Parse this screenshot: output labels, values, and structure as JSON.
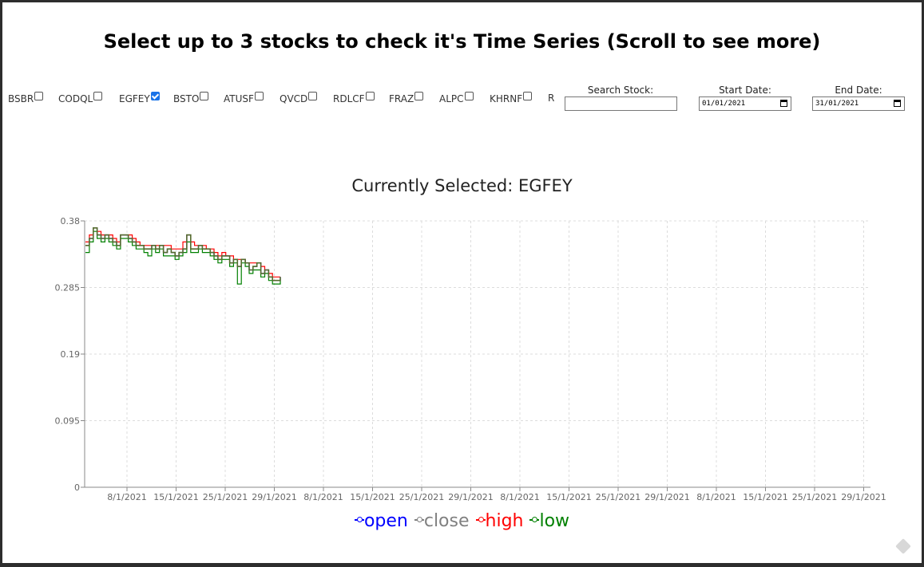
{
  "page": {
    "title": "Select up to 3 stocks to check it's Time Series (Scroll to see more)"
  },
  "stocks": [
    {
      "symbol": "BSBR",
      "checked": false
    },
    {
      "symbol": "CODQL",
      "checked": false
    },
    {
      "symbol": "EGFEY",
      "checked": true
    },
    {
      "symbol": "BSTO",
      "checked": false
    },
    {
      "symbol": "ATUSF",
      "checked": false
    },
    {
      "symbol": "QVCD",
      "checked": false
    },
    {
      "symbol": "RDLCF",
      "checked": false
    },
    {
      "symbol": "FRAZ",
      "checked": false
    },
    {
      "symbol": "ALPC",
      "checked": false
    },
    {
      "symbol": "KHRNF",
      "checked": false
    },
    {
      "symbol": "R",
      "checked": false
    }
  ],
  "controls": {
    "search_label": "Search Stock:",
    "search_value": "",
    "start_label": "Start Date:",
    "start_value": "01/01/2021",
    "end_label": "End Date:",
    "end_value": "31/01/2021"
  },
  "chart_data": {
    "type": "line",
    "title": "Currently Selected: EGFEY",
    "ylim": [
      0,
      0.38
    ],
    "y_ticks": [
      "0",
      "0.095",
      "0.19",
      "0.285",
      "0.38"
    ],
    "x_ticks": [
      "8/1/2021",
      "15/1/2021",
      "25/1/2021",
      "29/1/2021",
      "8/1/2021",
      "15/1/2021",
      "25/1/2021",
      "29/1/2021",
      "8/1/2021",
      "15/1/2021",
      "25/1/2021",
      "29/1/2021",
      "8/1/2021",
      "15/1/2021",
      "25/1/2021",
      "29/1/2021",
      "8/1/2021",
      "15/1/2021",
      "25/1/2021",
      "29/1/2021",
      "29/1/2021"
    ],
    "grid": true,
    "legend_position": "bottom",
    "series": [
      {
        "name": "open",
        "color": "#0000ff",
        "values": [
          0.345,
          0.355,
          0.37,
          0.36,
          0.355,
          0.36,
          0.355,
          0.35,
          0.345,
          0.36,
          0.36,
          0.355,
          0.35,
          0.345,
          0.345,
          0.34,
          0.34,
          0.345,
          0.34,
          0.345,
          0.335,
          0.34,
          0.335,
          0.33,
          0.335,
          0.34,
          0.36,
          0.34,
          0.34,
          0.345,
          0.34,
          0.34,
          0.335,
          0.33,
          0.325,
          0.33,
          0.33,
          0.32,
          0.325,
          0.315,
          0.325,
          0.32,
          0.31,
          0.315,
          0.32,
          0.305,
          0.31,
          0.3,
          0.295,
          0.295,
          0.3
        ]
      },
      {
        "name": "close",
        "color": "#808080",
        "values": [
          0.345,
          0.355,
          0.37,
          0.36,
          0.355,
          0.36,
          0.355,
          0.35,
          0.345,
          0.36,
          0.36,
          0.355,
          0.35,
          0.345,
          0.345,
          0.34,
          0.34,
          0.345,
          0.34,
          0.345,
          0.335,
          0.34,
          0.335,
          0.33,
          0.335,
          0.34,
          0.36,
          0.34,
          0.34,
          0.345,
          0.34,
          0.34,
          0.335,
          0.33,
          0.325,
          0.33,
          0.33,
          0.32,
          0.325,
          0.315,
          0.325,
          0.32,
          0.31,
          0.315,
          0.32,
          0.305,
          0.31,
          0.3,
          0.295,
          0.295,
          0.3
        ]
      },
      {
        "name": "high",
        "color": "#ff0000",
        "values": [
          0.35,
          0.36,
          0.37,
          0.365,
          0.36,
          0.36,
          0.36,
          0.355,
          0.35,
          0.36,
          0.36,
          0.36,
          0.355,
          0.35,
          0.345,
          0.345,
          0.345,
          0.345,
          0.345,
          0.345,
          0.345,
          0.345,
          0.34,
          0.34,
          0.34,
          0.35,
          0.36,
          0.35,
          0.345,
          0.345,
          0.345,
          0.34,
          0.34,
          0.335,
          0.33,
          0.335,
          0.33,
          0.33,
          0.325,
          0.325,
          0.325,
          0.32,
          0.32,
          0.32,
          0.32,
          0.315,
          0.31,
          0.305,
          0.3,
          0.3,
          0.3
        ]
      },
      {
        "name": "low",
        "color": "#008000",
        "values": [
          0.335,
          0.35,
          0.365,
          0.355,
          0.35,
          0.355,
          0.35,
          0.345,
          0.34,
          0.355,
          0.355,
          0.35,
          0.345,
          0.34,
          0.34,
          0.335,
          0.33,
          0.34,
          0.335,
          0.34,
          0.33,
          0.33,
          0.33,
          0.325,
          0.33,
          0.335,
          0.35,
          0.335,
          0.335,
          0.34,
          0.335,
          0.335,
          0.33,
          0.325,
          0.32,
          0.325,
          0.325,
          0.315,
          0.32,
          0.29,
          0.32,
          0.315,
          0.305,
          0.31,
          0.31,
          0.3,
          0.305,
          0.295,
          0.29,
          0.29,
          0.295
        ]
      }
    ]
  }
}
